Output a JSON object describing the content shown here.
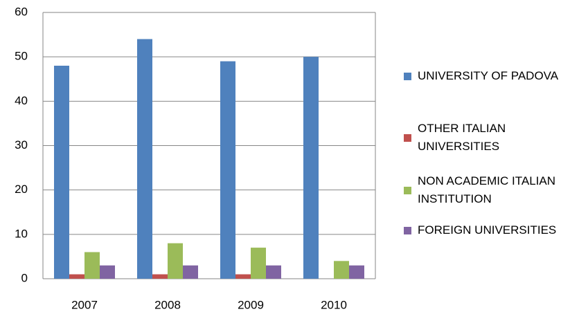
{
  "chart_data": {
    "type": "bar",
    "categories": [
      "2007",
      "2008",
      "2009",
      "2010"
    ],
    "series": [
      {
        "name": "UNIVERSITY OF PADOVA",
        "color": "#4f81bd",
        "values": [
          48,
          54,
          49,
          50
        ]
      },
      {
        "name": "OTHER ITALIAN UNIVERSITIES",
        "color": "#c0504d",
        "values": [
          1,
          1,
          1,
          0
        ]
      },
      {
        "name": "NON ACADEMIC ITALIAN INSTITUTION",
        "color": "#9bbb59",
        "values": [
          6,
          8,
          7,
          4
        ]
      },
      {
        "name": "FOREIGN UNIVERSITIES",
        "color": "#8064a2",
        "values": [
          3,
          3,
          3,
          3
        ]
      }
    ],
    "ylim": [
      0,
      60
    ],
    "yticks": [
      0,
      10,
      20,
      30,
      40,
      50,
      60
    ],
    "grid": true,
    "legend": "right"
  }
}
